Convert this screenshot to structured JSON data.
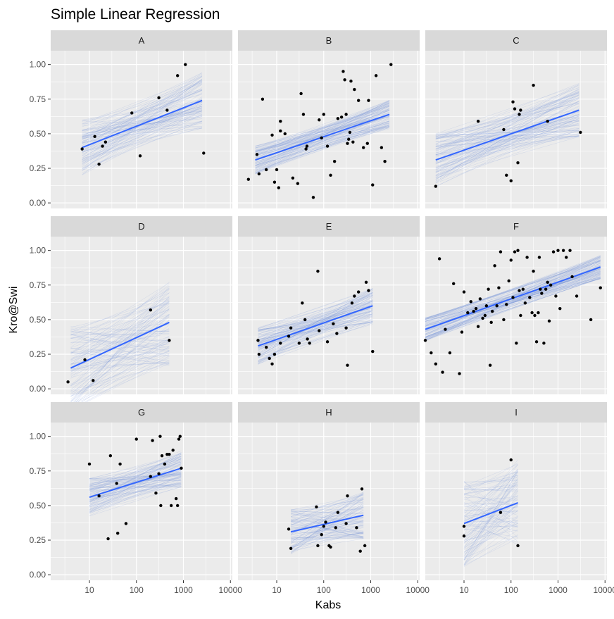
{
  "chart_data": {
    "type": "scatter",
    "title": "Simple Linear Regression",
    "xlabel": "Kabs",
    "ylabel": "Kro@Swi",
    "x_scale": "log10",
    "xlim": [
      1.5,
      11000
    ],
    "ylim": [
      -0.04,
      1.1
    ],
    "x_ticks": [
      10,
      100,
      1000,
      10000
    ],
    "x_tick_labels": [
      "10",
      "100",
      "1000",
      "10000"
    ],
    "y_ticks": [
      0,
      0.25,
      0.5,
      0.75,
      1
    ],
    "y_tick_labels": [
      "0.00",
      "0.25",
      "0.50",
      "0.75",
      "1.00"
    ],
    "grid": true,
    "colors": {
      "panel_bg": "#ebebeb",
      "strip_bg": "#d9d9d9",
      "grid": "#ffffff",
      "points": "#000000",
      "fit_line": "#3366ff",
      "posterior_lines": "#6e8fd6"
    },
    "panels": [
      {
        "label": "A",
        "fit": {
          "x0": 7,
          "y0": 0.4,
          "x1": 2500,
          "y1": 0.74
        },
        "points": [
          [
            7,
            0.39
          ],
          [
            13,
            0.48
          ],
          [
            16,
            0.28
          ],
          [
            19,
            0.41
          ],
          [
            22,
            0.44
          ],
          [
            80,
            0.65
          ],
          [
            120,
            0.34
          ],
          [
            300,
            0.76
          ],
          [
            450,
            0.67
          ],
          [
            750,
            0.92
          ],
          [
            1100,
            1.0
          ],
          [
            2700,
            0.36
          ]
        ]
      },
      {
        "label": "B",
        "fit": {
          "x0": 3.5,
          "y0": 0.31,
          "x1": 2500,
          "y1": 0.64
        },
        "points": [
          [
            2.5,
            0.17
          ],
          [
            3.8,
            0.35
          ],
          [
            4.2,
            0.21
          ],
          [
            5,
            0.75
          ],
          [
            6,
            0.24
          ],
          [
            8,
            0.49
          ],
          [
            9,
            0.15
          ],
          [
            10,
            0.24
          ],
          [
            11,
            0.11
          ],
          [
            12,
            0.59
          ],
          [
            12,
            0.52
          ],
          [
            15,
            0.5
          ],
          [
            22,
            0.18
          ],
          [
            28,
            0.14
          ],
          [
            33,
            0.79
          ],
          [
            37,
            0.64
          ],
          [
            42,
            0.39
          ],
          [
            44,
            0.41
          ],
          [
            60,
            0.04
          ],
          [
            80,
            0.6
          ],
          [
            90,
            0.47
          ],
          [
            100,
            0.64
          ],
          [
            120,
            0.41
          ],
          [
            140,
            0.2
          ],
          [
            170,
            0.3
          ],
          [
            200,
            0.61
          ],
          [
            240,
            0.62
          ],
          [
            260,
            0.95
          ],
          [
            280,
            0.89
          ],
          [
            300,
            0.64
          ],
          [
            320,
            0.43
          ],
          [
            340,
            0.46
          ],
          [
            360,
            0.51
          ],
          [
            380,
            0.88
          ],
          [
            420,
            0.44
          ],
          [
            450,
            0.82
          ],
          [
            550,
            0.74
          ],
          [
            700,
            0.4
          ],
          [
            850,
            0.43
          ],
          [
            900,
            0.74
          ],
          [
            1100,
            0.13
          ],
          [
            1300,
            0.92
          ],
          [
            1700,
            0.4
          ],
          [
            2000,
            0.3
          ],
          [
            2700,
            1.0
          ]
        ]
      },
      {
        "label": "C",
        "fit": {
          "x0": 2.5,
          "y0": 0.31,
          "x1": 2800,
          "y1": 0.67
        },
        "points": [
          [
            2.5,
            0.12
          ],
          [
            20,
            0.59
          ],
          [
            70,
            0.53
          ],
          [
            80,
            0.2
          ],
          [
            100,
            0.16
          ],
          [
            110,
            0.73
          ],
          [
            120,
            0.68
          ],
          [
            140,
            0.29
          ],
          [
            150,
            0.64
          ],
          [
            160,
            0.67
          ],
          [
            300,
            0.85
          ],
          [
            600,
            0.59
          ],
          [
            3000,
            0.51
          ]
        ]
      },
      {
        "label": "D",
        "fit": {
          "x0": 4,
          "y0": 0.15,
          "x1": 500,
          "y1": 0.48
        },
        "points": [
          [
            3.5,
            0.05
          ],
          [
            8,
            0.21
          ],
          [
            12,
            0.06
          ],
          [
            200,
            0.57
          ],
          [
            500,
            0.35
          ]
        ]
      },
      {
        "label": "E",
        "fit": {
          "x0": 4,
          "y0": 0.31,
          "x1": 1100,
          "y1": 0.6
        },
        "points": [
          [
            4,
            0.35
          ],
          [
            4.2,
            0.25
          ],
          [
            6,
            0.3
          ],
          [
            7,
            0.22
          ],
          [
            8,
            0.18
          ],
          [
            9,
            0.25
          ],
          [
            12,
            0.33
          ],
          [
            18,
            0.38
          ],
          [
            20,
            0.44
          ],
          [
            30,
            0.33
          ],
          [
            35,
            0.62
          ],
          [
            40,
            0.5
          ],
          [
            45,
            0.36
          ],
          [
            50,
            0.33
          ],
          [
            75,
            0.85
          ],
          [
            80,
            0.42
          ],
          [
            120,
            0.34
          ],
          [
            160,
            0.47
          ],
          [
            190,
            0.4
          ],
          [
            300,
            0.44
          ],
          [
            320,
            0.17
          ],
          [
            400,
            0.62
          ],
          [
            450,
            0.67
          ],
          [
            550,
            0.7
          ],
          [
            800,
            0.77
          ],
          [
            900,
            0.71
          ],
          [
            1100,
            0.27
          ]
        ]
      },
      {
        "label": "F",
        "fit": {
          "x0": 1.5,
          "y0": 0.43,
          "x1": 8000,
          "y1": 0.88
        },
        "points": [
          [
            1.5,
            0.35
          ],
          [
            2,
            0.26
          ],
          [
            2.5,
            0.18
          ],
          [
            3,
            0.94
          ],
          [
            3.5,
            0.12
          ],
          [
            4,
            0.43
          ],
          [
            5,
            0.26
          ],
          [
            6,
            0.76
          ],
          [
            8,
            0.11
          ],
          [
            9,
            0.41
          ],
          [
            10,
            0.7
          ],
          [
            12,
            0.55
          ],
          [
            14,
            0.63
          ],
          [
            16,
            0.56
          ],
          [
            18,
            0.58
          ],
          [
            20,
            0.45
          ],
          [
            22,
            0.65
          ],
          [
            25,
            0.51
          ],
          [
            28,
            0.53
          ],
          [
            30,
            0.6
          ],
          [
            33,
            0.72
          ],
          [
            36,
            0.17
          ],
          [
            38,
            0.48
          ],
          [
            40,
            0.56
          ],
          [
            45,
            0.89
          ],
          [
            50,
            0.6
          ],
          [
            55,
            0.73
          ],
          [
            60,
            0.99
          ],
          [
            70,
            0.5
          ],
          [
            80,
            0.61
          ],
          [
            90,
            0.78
          ],
          [
            100,
            0.93
          ],
          [
            110,
            0.66
          ],
          [
            120,
            0.99
          ],
          [
            130,
            0.33
          ],
          [
            140,
            1.0
          ],
          [
            150,
            0.71
          ],
          [
            160,
            0.53
          ],
          [
            180,
            0.72
          ],
          [
            200,
            0.62
          ],
          [
            220,
            0.95
          ],
          [
            250,
            0.66
          ],
          [
            280,
            0.55
          ],
          [
            300,
            0.85
          ],
          [
            320,
            0.53
          ],
          [
            350,
            0.34
          ],
          [
            380,
            0.55
          ],
          [
            400,
            0.95
          ],
          [
            420,
            0.72
          ],
          [
            450,
            0.69
          ],
          [
            500,
            0.33
          ],
          [
            550,
            0.72
          ],
          [
            600,
            0.77
          ],
          [
            650,
            0.49
          ],
          [
            700,
            0.75
          ],
          [
            800,
            0.99
          ],
          [
            900,
            0.67
          ],
          [
            1000,
            1.0
          ],
          [
            1100,
            0.58
          ],
          [
            1300,
            1.0
          ],
          [
            1500,
            0.95
          ],
          [
            1800,
            1.0
          ],
          [
            2000,
            0.81
          ],
          [
            2500,
            0.67
          ],
          [
            5000,
            0.5
          ],
          [
            8000,
            0.73
          ]
        ]
      },
      {
        "label": "G",
        "fit": {
          "x0": 10,
          "y0": 0.56,
          "x1": 900,
          "y1": 0.77
        },
        "points": [
          [
            10,
            0.8
          ],
          [
            16,
            0.57
          ],
          [
            25,
            0.26
          ],
          [
            28,
            0.86
          ],
          [
            38,
            0.66
          ],
          [
            40,
            0.3
          ],
          [
            45,
            0.8
          ],
          [
            60,
            0.37
          ],
          [
            100,
            0.98
          ],
          [
            200,
            0.71
          ],
          [
            220,
            0.97
          ],
          [
            260,
            0.59
          ],
          [
            300,
            0.73
          ],
          [
            320,
            1.0
          ],
          [
            330,
            0.5
          ],
          [
            350,
            0.86
          ],
          [
            400,
            0.8
          ],
          [
            450,
            0.87
          ],
          [
            500,
            0.87
          ],
          [
            550,
            0.5
          ],
          [
            600,
            0.9
          ],
          [
            700,
            0.55
          ],
          [
            750,
            0.5
          ],
          [
            800,
            0.98
          ],
          [
            850,
            1.0
          ],
          [
            900,
            0.77
          ]
        ]
      },
      {
        "label": "H",
        "fit": {
          "x0": 20,
          "y0": 0.31,
          "x1": 700,
          "y1": 0.43
        },
        "points": [
          [
            18,
            0.33
          ],
          [
            20,
            0.19
          ],
          [
            70,
            0.49
          ],
          [
            75,
            0.21
          ],
          [
            90,
            0.29
          ],
          [
            100,
            0.35
          ],
          [
            110,
            0.38
          ],
          [
            130,
            0.21
          ],
          [
            140,
            0.2
          ],
          [
            180,
            0.34
          ],
          [
            200,
            0.45
          ],
          [
            300,
            0.37
          ],
          [
            320,
            0.57
          ],
          [
            500,
            0.34
          ],
          [
            600,
            0.17
          ],
          [
            650,
            0.62
          ],
          [
            750,
            0.21
          ]
        ]
      },
      {
        "label": "I",
        "fit": {
          "x0": 10,
          "y0": 0.37,
          "x1": 140,
          "y1": 0.52
        },
        "points": [
          [
            10,
            0.28
          ],
          [
            10,
            0.35
          ],
          [
            60,
            0.45
          ],
          [
            100,
            0.83
          ],
          [
            140,
            0.21
          ]
        ]
      }
    ]
  }
}
